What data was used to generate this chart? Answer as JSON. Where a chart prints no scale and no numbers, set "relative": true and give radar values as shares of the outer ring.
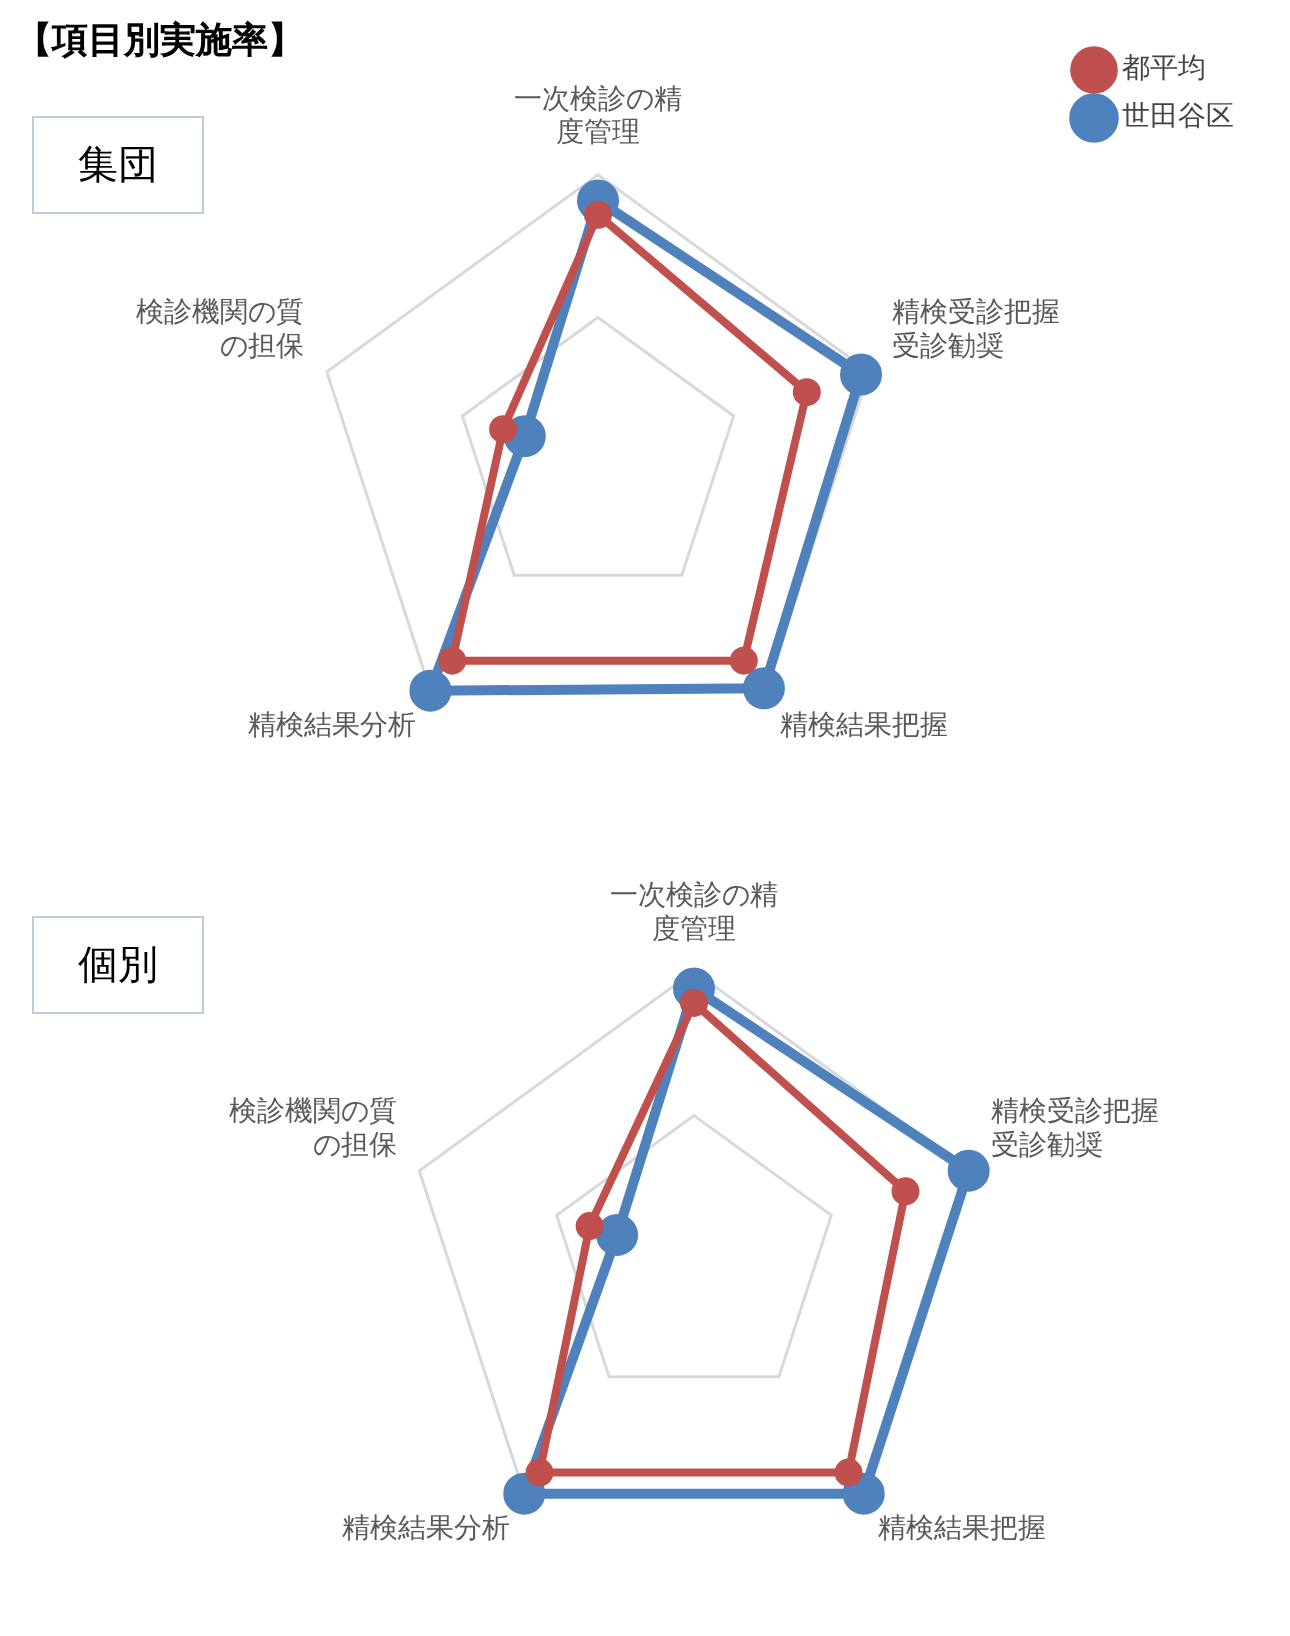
{
  "chart_data": [
    {
      "type": "radar",
      "title": "【項目別実施率】",
      "subtitle": "集団",
      "relative": true,
      "grid": true,
      "legend": "top right",
      "marker": "circle",
      "categories": [
        "一次検診の精度管理",
        "精検受診把握受診勧奨",
        "精検結果把握",
        "精検結果分析",
        "検診機関の質の担保"
      ],
      "series": [
        {
          "name": "世田谷区",
          "color": "#4f81bd",
          "values": [
            0.91,
            0.97,
            0.99,
            1.0,
            0.27
          ]
        },
        {
          "name": "都平均",
          "color": "#c0504d",
          "values": [
            0.86,
            0.77,
            0.87,
            0.87,
            0.35
          ]
        }
      ]
    },
    {
      "type": "radar",
      "subtitle": "個別",
      "relative": true,
      "grid": true,
      "marker": "circle",
      "categories": [
        "一次検診の精度管理",
        "精検受診把握受診勧奨",
        "精検結果把握",
        "精検結果分析",
        "検診機関の質の担保"
      ],
      "series": [
        {
          "color": "#4f81bd",
          "values": [
            0.94,
            1.0,
            1.0,
            1.0,
            0.28
          ]
        },
        {
          "color": "#c0504d",
          "values": [
            0.89,
            0.77,
            0.91,
            0.91,
            0.38
          ]
        }
      ]
    }
  ]
}
